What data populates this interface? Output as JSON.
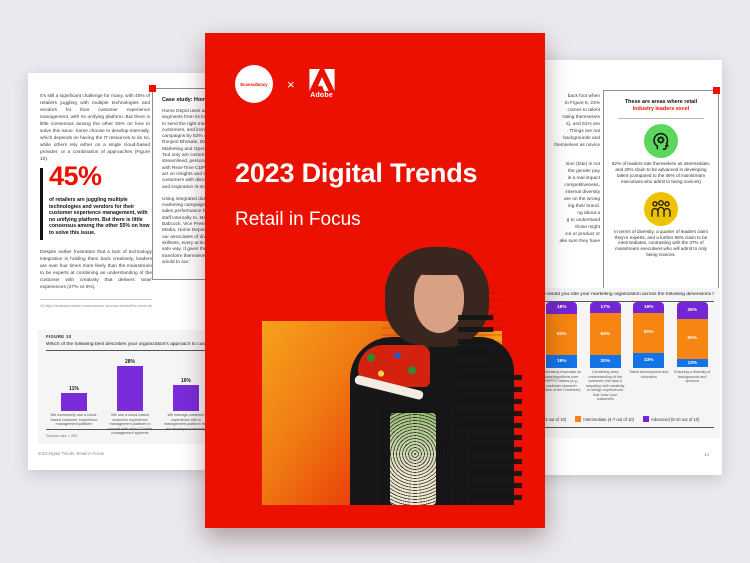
{
  "cover": {
    "brand_left": "Econsultancy",
    "brand_separator": "×",
    "brand_right": "Adobe",
    "title": "2023 Digital Trends",
    "subtitle": "Retail in Focus",
    "accent_color": "#eb1000"
  },
  "left_page": {
    "intro": "It's still a significant challenge for many, with 45% of retailers juggling with multiple technologies and vendors for their customer experience management, with no unifying platform. But there is little consensus among the other 55% on how to solve this issue. Some choose to develop internally, which depends on having the IT resources to do so, while others rely either on a single cloud-based provider, or a combination of approaches (Figure 10).",
    "stat_value": "45%",
    "stat_text": "of retailers are juggling multiple technologies and vendors for their customer experience management, with no unifying platform. But there is little consensus among the other 55% on how to solve this issue.",
    "para2": "Despite earlier frustration that a lack of technology integration is holding them back creatively, leaders are over four times more likely than the mainstream to be experts at combining an understanding of the customer with creativity that delivers 'wow' experiences (27% vs 6%).",
    "footnote": "10 https://business.adobe.com/customer-success-stories/the-home-depot-case-study",
    "case_study": {
      "title": "Case study: Home Depot",
      "lines_block1": [
        "Home Depot uses audience",
        "segments from its loyalty",
        "to send the right message",
        "customers, and increased",
        "campaigns by 62% using",
        "Ronjent Bhosale, Director",
        "Marketing and Operations",
        "'Not only are customer",
        "streamlined, personalized",
        "with Real-Time CDP, we",
        "act on insights and serve",
        "customers with discovery",
        "and inspiration in-store."
      ],
      "lines_block2": [
        "Using integrated data for",
        "marketing campaigns and",
        "sales performance helps",
        "staff internally to. Melanie",
        "Babcock, Vice President,",
        "Media, Home Depot: 'For",
        "our associates of diverse",
        "skillsets, every action in a",
        "safe way. It gives them to",
        "transform themselves as I",
        "would to our.'"
      ]
    },
    "footer": "2023 Digital Trends: Retail in Focus"
  },
  "right_page": {
    "column_fragments_block1": [
      "back foot when",
      "to Figure 6, 23%",
      "comes to talent",
      "rating themselves",
      "s), and 61% are",
      ". Things are not",
      "backgrounds and",
      "themselves as novice"
    ],
    "column_fragments_block2": [
      "sion (D&I) is not",
      "the gender pay",
      "is a real impact",
      "competitiveness,",
      "internal diversity",
      "are on the wrong",
      "ing their brand.",
      "ng about a",
      "g to understand",
      "those might",
      "ice or product or",
      "ake sure they have"
    ],
    "callout": {
      "title_line1": "These are areas where retail",
      "title_line2": "industry leaders excel",
      "items": [
        {
          "icon": "head-gear-icon",
          "icon_bg": "#5cd65c",
          "text": "52% of leaders rate themselves as intermediate, and 20% claim to be advanced in developing talent (compared to the 48% of mainstream executives who admit to being novices)"
        },
        {
          "icon": "people-group-icon",
          "icon_bg": "#eec200",
          "text": "In terms of diversity, a quarter of leaders claim they're experts, and a further 59% claim to be intermediates, contrasting with the 37% of mainstream executives who will admit to only being novices."
        }
      ]
    },
    "page_number": "14"
  },
  "chart_data": [
    {
      "type": "bar",
      "figure_label": "FIGURE 10",
      "title": "Which of the following best describes your organization's approach to customer experience management?",
      "categories": [
        "We exclusively use a cloud-based customer experience management platform",
        "We use a cloud-based customer experience management platform in concert with other CX/data management systems",
        "We manage customer experience with a management platform that we developed internally"
      ],
      "values": [
        11,
        28,
        16
      ],
      "bar_color": "#7b2bd9",
      "sample_note": "Sample size = 293",
      "ylim": [
        0,
        30
      ],
      "grid": false
    },
    {
      "type": "bar",
      "subtype": "stacked-percentage",
      "title": "How would you rate your marketing organization across the following dimensions from 1 to 10?",
      "categories": [
        "Increasing emphasis on data/algorithms over 'HiPPO' biases (e.g., customer research, Voice of the Customer)",
        "Combining deep understanding of the customer (via data & empathy) with creativity to design experiences that 'wow' your customers",
        "Talent development and education",
        "Ensuring a diversity of backgrounds and opinions"
      ],
      "series": [
        {
          "name": "Novice (1-3 out of 10)",
          "color": "#1473e6",
          "values": [
            19,
            20,
            23,
            13
          ]
        },
        {
          "name": "Intermediate (4-7 out of 10)",
          "color": "#f68511",
          "values": [
            63,
            63,
            61,
            60
          ]
        },
        {
          "name": "Advanced (8-10 out of 10)",
          "color": "#7326d3",
          "values": [
            18,
            17,
            16,
            26
          ]
        }
      ],
      "legend_position": "bottom",
      "ylim": [
        0,
        100
      ],
      "grid": false
    }
  ]
}
